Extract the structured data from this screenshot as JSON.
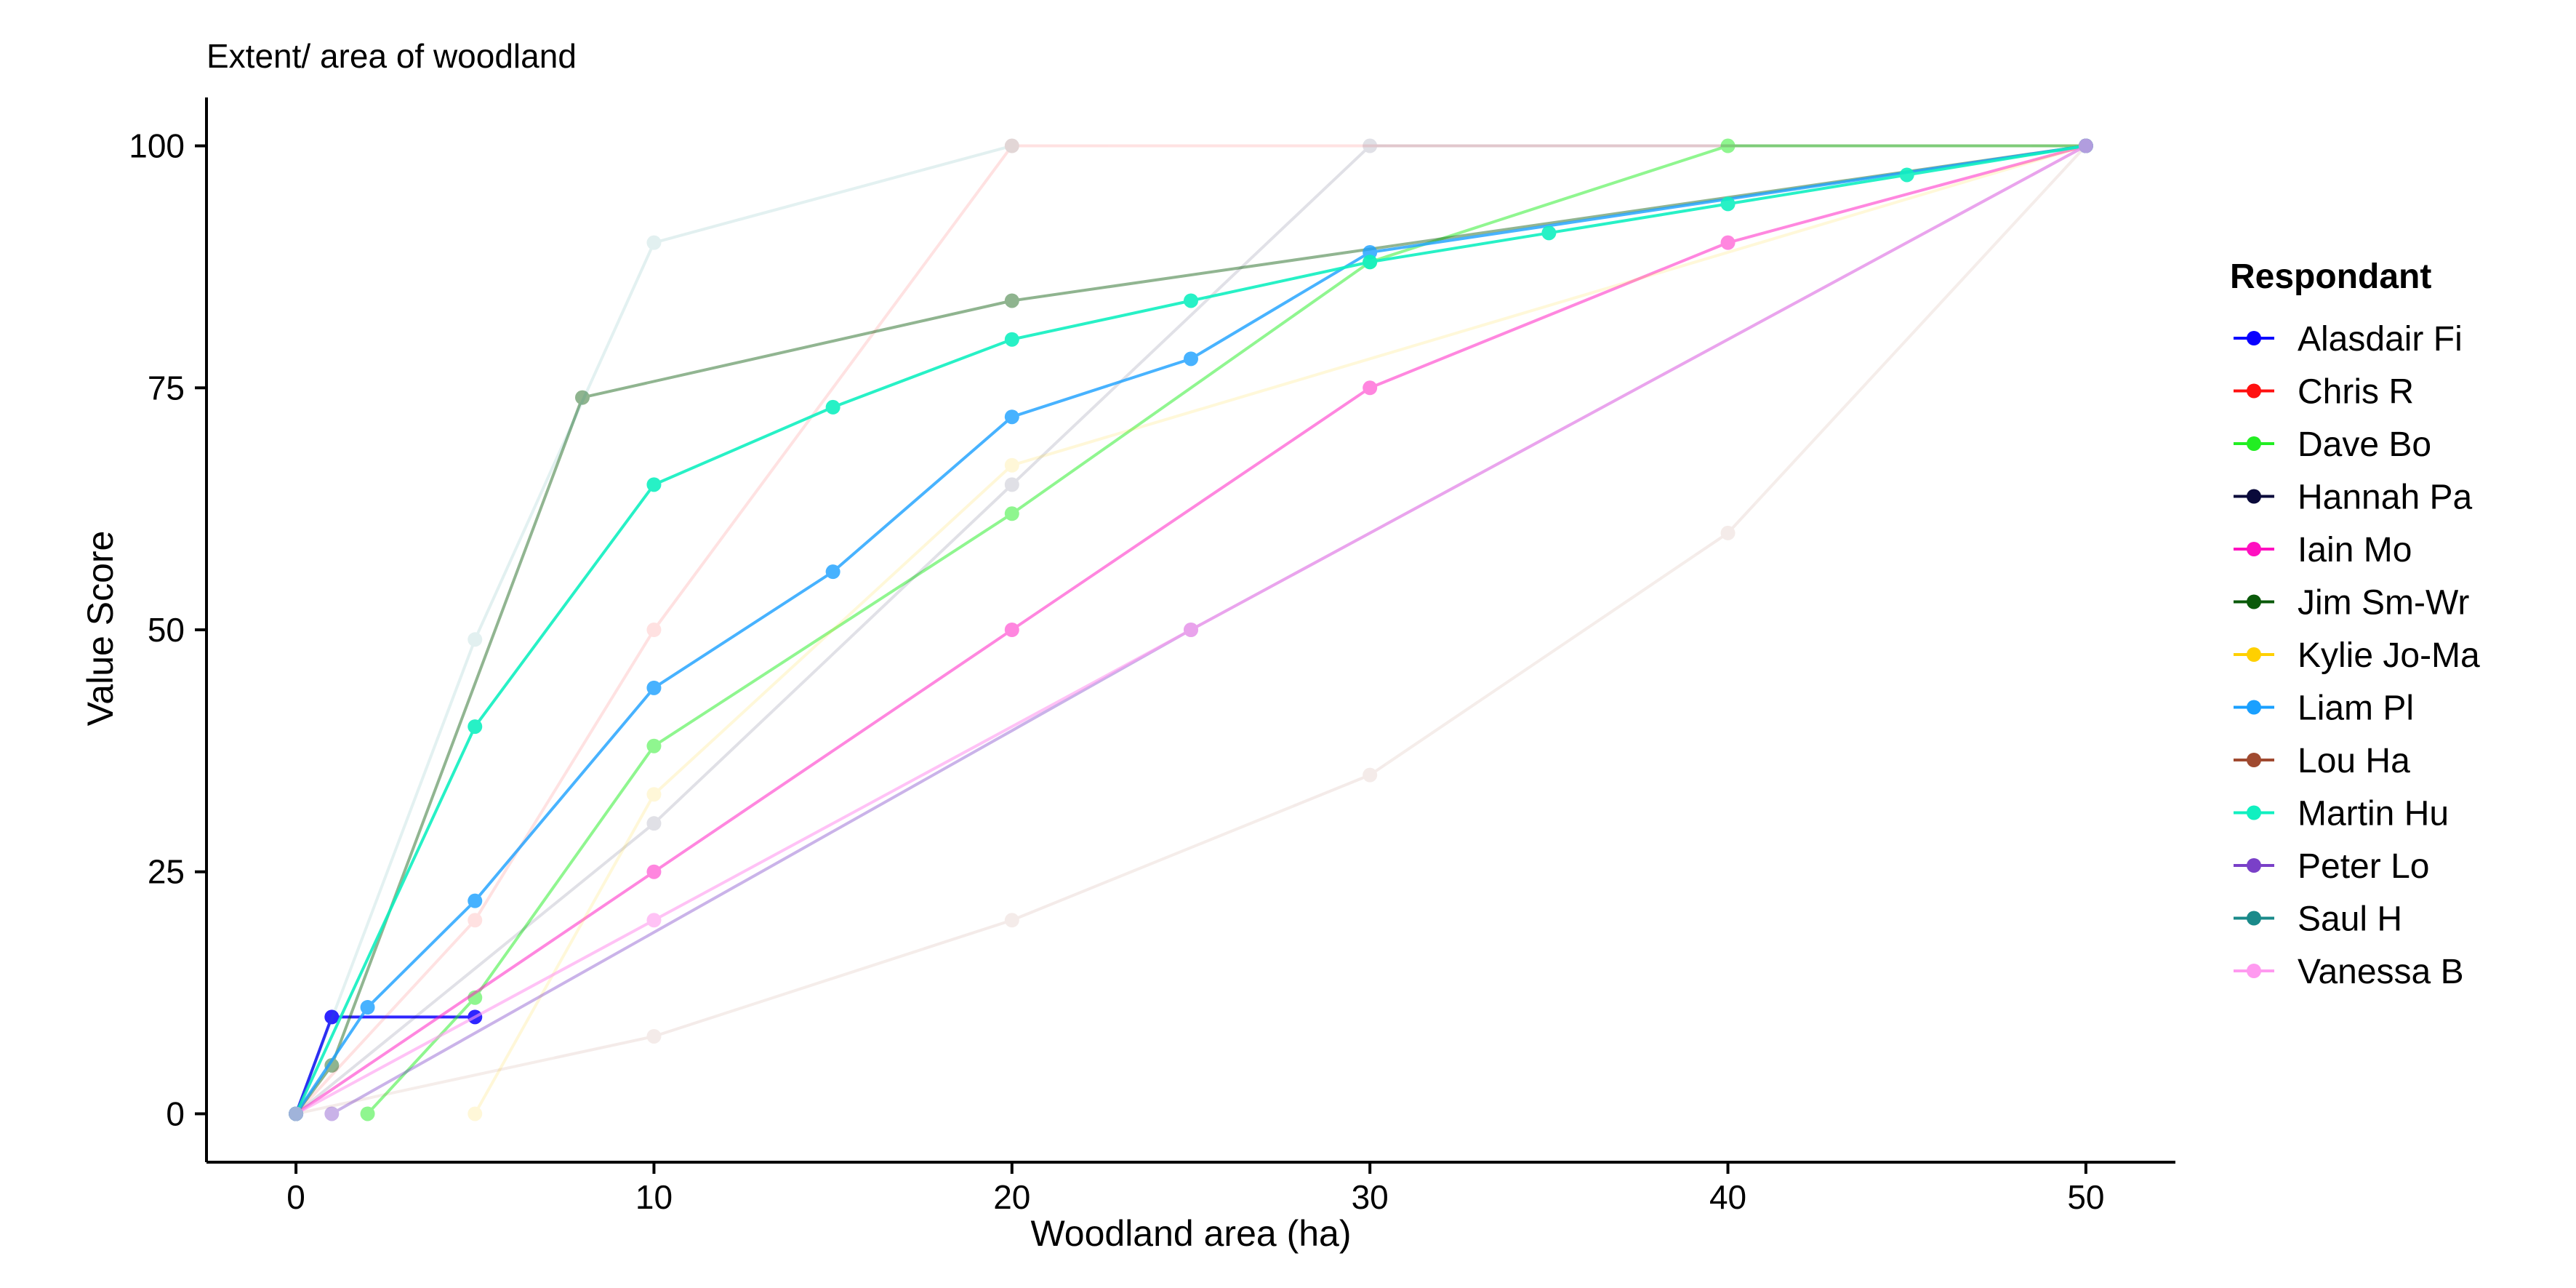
{
  "chart_data": {
    "type": "line",
    "title": "Extent/ area of woodland",
    "xlabel": "Woodland area (ha)",
    "ylabel": "Value Score",
    "xlim": [
      -2.5,
      52.5
    ],
    "ylim": [
      -5,
      105
    ],
    "x_ticks": [
      0,
      10,
      20,
      30,
      40,
      50
    ],
    "y_ticks": [
      0,
      25,
      50,
      75,
      100
    ],
    "grid": false,
    "legend_title": "Respondant",
    "legend_position": "right",
    "series": [
      {
        "name": "Alasdair Fi",
        "color": "#0A00FF",
        "opacity": 0.85,
        "points": [
          [
            0,
            0
          ],
          [
            1,
            10
          ],
          [
            5,
            10
          ]
        ]
      },
      {
        "name": "Chris R",
        "color": "#FF1010",
        "opacity": 0.12,
        "points": [
          [
            0,
            0
          ],
          [
            5,
            20
          ],
          [
            10,
            50
          ],
          [
            20,
            100
          ],
          [
            50,
            100
          ]
        ]
      },
      {
        "name": "Dave Bo",
        "color": "#22EE22",
        "opacity": 0.5,
        "points": [
          [
            2,
            0
          ],
          [
            5,
            12
          ],
          [
            10,
            38
          ],
          [
            20,
            62
          ],
          [
            30,
            88
          ],
          [
            40,
            100
          ],
          [
            50,
            100
          ]
        ]
      },
      {
        "name": "Hannah Pa",
        "color": "#0A0A3A",
        "opacity": 0.12,
        "points": [
          [
            0,
            0
          ],
          [
            10,
            30
          ],
          [
            20,
            65
          ],
          [
            30,
            100
          ],
          [
            50,
            100
          ]
        ]
      },
      {
        "name": "Iain Mo",
        "color": "#FF10C0",
        "opacity": 0.5,
        "points": [
          [
            0,
            0
          ],
          [
            10,
            25
          ],
          [
            20,
            50
          ],
          [
            30,
            75
          ],
          [
            40,
            90
          ],
          [
            50,
            100
          ]
        ]
      },
      {
        "name": "Jim Sm-Wr",
        "color": "#0A5A0A",
        "opacity": 0.45,
        "points": [
          [
            0,
            0
          ],
          [
            1,
            5
          ],
          [
            8,
            74
          ],
          [
            20,
            84
          ],
          [
            50,
            100
          ]
        ]
      },
      {
        "name": "Kylie Jo-Ma",
        "color": "#FFD000",
        "opacity": 0.15,
        "points": [
          [
            5,
            0
          ],
          [
            10,
            33
          ],
          [
            20,
            67
          ],
          [
            50,
            100
          ]
        ]
      },
      {
        "name": "Liam Pl",
        "color": "#1AA0FF",
        "opacity": 0.8,
        "points": [
          [
            0,
            0
          ],
          [
            2,
            11
          ],
          [
            5,
            22
          ],
          [
            10,
            44
          ],
          [
            15,
            56
          ],
          [
            20,
            72
          ],
          [
            25,
            78
          ],
          [
            30,
            89
          ],
          [
            50,
            100
          ]
        ]
      },
      {
        "name": "Lou Ha",
        "color": "#A04A30",
        "opacity": 0.1,
        "points": [
          [
            0,
            0
          ],
          [
            10,
            8
          ],
          [
            20,
            20
          ],
          [
            30,
            35
          ],
          [
            40,
            60
          ],
          [
            50,
            100
          ]
        ]
      },
      {
        "name": "Martin Hu",
        "color": "#10F0C0",
        "opacity": 0.9,
        "points": [
          [
            0,
            0
          ],
          [
            5,
            40
          ],
          [
            10,
            65
          ],
          [
            15,
            73
          ],
          [
            20,
            80
          ],
          [
            25,
            84
          ],
          [
            30,
            88
          ],
          [
            35,
            91
          ],
          [
            40,
            94
          ],
          [
            45,
            97
          ],
          [
            50,
            100
          ]
        ]
      },
      {
        "name": "Peter Lo",
        "color": "#7A40C8",
        "opacity": 0.4,
        "points": [
          [
            1,
            0
          ],
          [
            25,
            50
          ],
          [
            50,
            100
          ]
        ]
      },
      {
        "name": "Saul H",
        "color": "#1A8A8A",
        "opacity": 0.12,
        "points": [
          [
            0,
            0
          ],
          [
            5,
            49
          ],
          [
            10,
            90
          ],
          [
            20,
            100
          ]
        ]
      },
      {
        "name": "Vanessa B",
        "color": "#FF9AF0",
        "opacity": 0.6,
        "points": [
          [
            0,
            0
          ],
          [
            10,
            20
          ],
          [
            25,
            50
          ],
          [
            50,
            100
          ]
        ]
      }
    ]
  }
}
